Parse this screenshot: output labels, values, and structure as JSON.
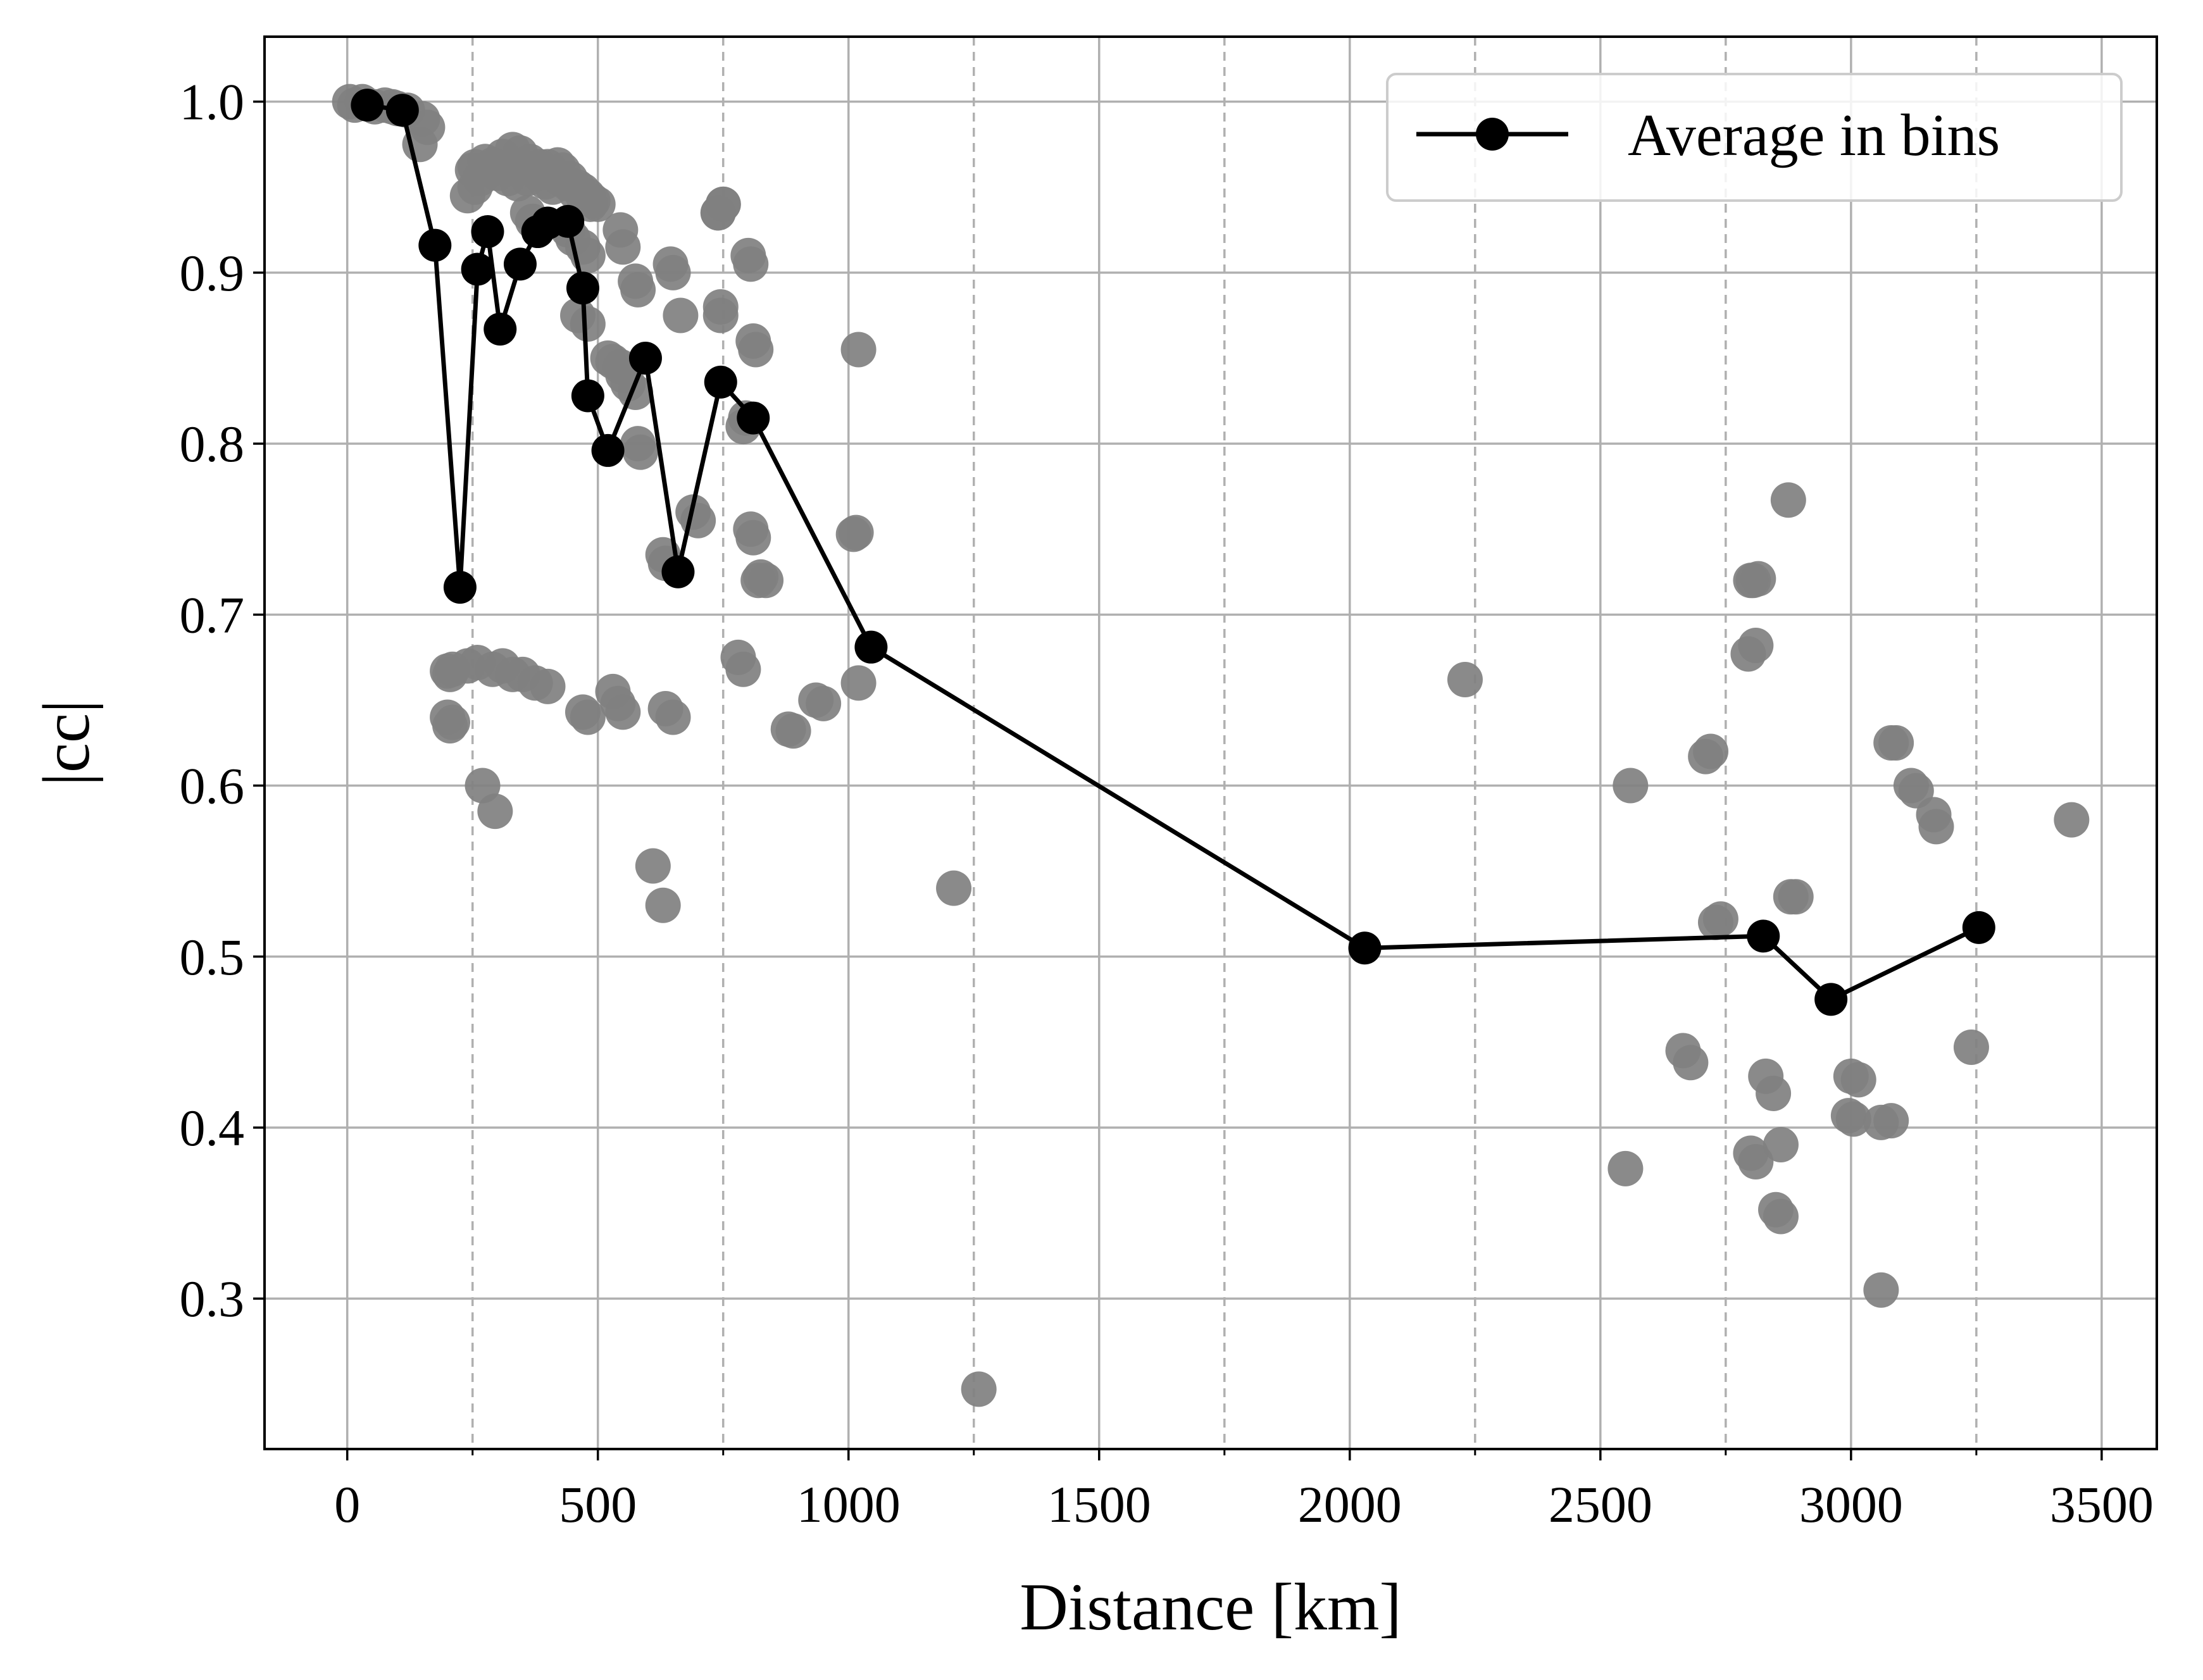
{
  "chart_data": {
    "type": "scatter",
    "xlabel": "Distance [km]",
    "ylabel": "|cc|",
    "xlim": [
      -165,
      3610
    ],
    "ylim": [
      0.212,
      1.038
    ],
    "xticks": [
      0,
      500,
      1000,
      1500,
      2000,
      2500,
      3000,
      3500
    ],
    "yticks": [
      0.3,
      0.4,
      0.5,
      0.6,
      0.7,
      0.8,
      0.9,
      1.0
    ],
    "xtick_labels": [
      "0",
      "500",
      "1000",
      "1500",
      "2000",
      "2500",
      "3000",
      "3500"
    ],
    "ytick_labels": [
      "0.3",
      "0.4",
      "0.5",
      "0.6",
      "0.7",
      "0.8",
      "0.9",
      "1.0"
    ],
    "bin_edges": [
      250,
      750,
      1250,
      1750,
      2250,
      2750,
      3250
    ],
    "grid": true,
    "legend_position": "top-right",
    "colors": {
      "scatter": "#808080",
      "average": "#000000",
      "grid": "#b0b0b0"
    },
    "scatter": {
      "x": [
        5,
        15,
        30,
        55,
        75,
        90,
        100,
        120,
        150,
        160,
        145,
        240,
        250,
        255,
        275,
        290,
        310,
        330,
        345,
        365,
        385,
        400,
        420,
        430,
        445,
        460,
        470,
        480,
        490,
        500,
        255,
        265,
        285,
        300,
        320,
        340,
        360,
        380,
        395,
        410,
        425,
        440,
        455,
        470,
        485,
        360,
        370,
        440,
        450,
        470,
        480,
        460,
        480,
        520,
        530,
        545,
        550,
        560,
        575,
        580,
        585,
        545,
        550,
        645,
        650,
        665,
        740,
        750,
        745,
        745,
        740,
        750,
        800,
        805,
        810,
        815,
        1020,
        790,
        795,
        805,
        810,
        820,
        825,
        835,
        1010,
        1015,
        690,
        700,
        575,
        580,
        630,
        635,
        200,
        205,
        210,
        240,
        260,
        290,
        310,
        330,
        350,
        375,
        400,
        200,
        205,
        210,
        270,
        295,
        470,
        480,
        530,
        540,
        550,
        635,
        650,
        780,
        790,
        880,
        890,
        935,
        950,
        1020,
        610,
        630,
        1210,
        1260,
        2230,
        2560,
        2710,
        2720,
        2730,
        2740,
        2800,
        2795,
        2810,
        2805,
        2815,
        2875,
        3080,
        3090,
        3120,
        3130,
        3165,
        3170,
        3440,
        2880,
        2890,
        2665,
        2680,
        2830,
        2845,
        3000,
        3015,
        3060,
        3080,
        3240,
        2995,
        3005,
        2800,
        2810,
        2860,
        2550,
        2850,
        2860,
        3060
      ],
      "y": [
        1.0,
        0.998,
        1.0,
        0.997,
        0.998,
        0.997,
        0.996,
        0.995,
        0.99,
        0.985,
        0.975,
        0.945,
        0.96,
        0.962,
        0.965,
        0.963,
        0.968,
        0.972,
        0.97,
        0.965,
        0.962,
        0.962,
        0.963,
        0.96,
        0.955,
        0.95,
        0.948,
        0.945,
        0.942,
        0.94,
        0.95,
        0.955,
        0.96,
        0.958,
        0.955,
        0.952,
        0.955,
        0.958,
        0.953,
        0.95,
        0.955,
        0.952,
        0.947,
        0.945,
        0.94,
        0.935,
        0.93,
        0.925,
        0.92,
        0.915,
        0.91,
        0.875,
        0.87,
        0.85,
        0.848,
        0.845,
        0.84,
        0.835,
        0.83,
        0.8,
        0.795,
        0.925,
        0.915,
        0.905,
        0.9,
        0.875,
        0.935,
        0.94,
        0.875,
        0.88,
        0.935,
        0.94,
        0.91,
        0.905,
        0.86,
        0.855,
        0.855,
        0.81,
        0.815,
        0.75,
        0.745,
        0.72,
        0.722,
        0.72,
        0.747,
        0.748,
        0.76,
        0.755,
        0.895,
        0.89,
        0.735,
        0.73,
        0.667,
        0.665,
        0.668,
        0.67,
        0.672,
        0.668,
        0.67,
        0.665,
        0.665,
        0.66,
        0.658,
        0.64,
        0.635,
        0.637,
        0.6,
        0.585,
        0.643,
        0.64,
        0.655,
        0.648,
        0.643,
        0.645,
        0.64,
        0.675,
        0.668,
        0.633,
        0.632,
        0.65,
        0.648,
        0.66,
        0.553,
        0.53,
        0.54,
        0.247,
        0.662,
        0.6,
        0.617,
        0.62,
        0.52,
        0.522,
        0.72,
        0.677,
        0.682,
        0.72,
        0.721,
        0.767,
        0.625,
        0.625,
        0.6,
        0.597,
        0.583,
        0.576,
        0.58,
        0.535,
        0.535,
        0.445,
        0.438,
        0.43,
        0.42,
        0.43,
        0.428,
        0.403,
        0.404,
        0.447,
        0.407,
        0.405,
        0.385,
        0.38,
        0.39,
        0.376,
        0.352,
        0.348,
        0.305
      ]
    },
    "series": [
      {
        "name": "Average in bins",
        "x": [
          40,
          110,
          175,
          225,
          260,
          280,
          305,
          345,
          380,
          400,
          440,
          470,
          480,
          520,
          595,
          660,
          745,
          810,
          1045,
          2030,
          2825,
          2960,
          3255
        ],
        "y": [
          0.998,
          0.995,
          0.916,
          0.716,
          0.902,
          0.924,
          0.867,
          0.905,
          0.924,
          0.929,
          0.93,
          0.891,
          0.828,
          0.796,
          0.85,
          0.725,
          0.836,
          0.815,
          0.681,
          0.505,
          0.512,
          0.475,
          0.517
        ]
      }
    ]
  }
}
